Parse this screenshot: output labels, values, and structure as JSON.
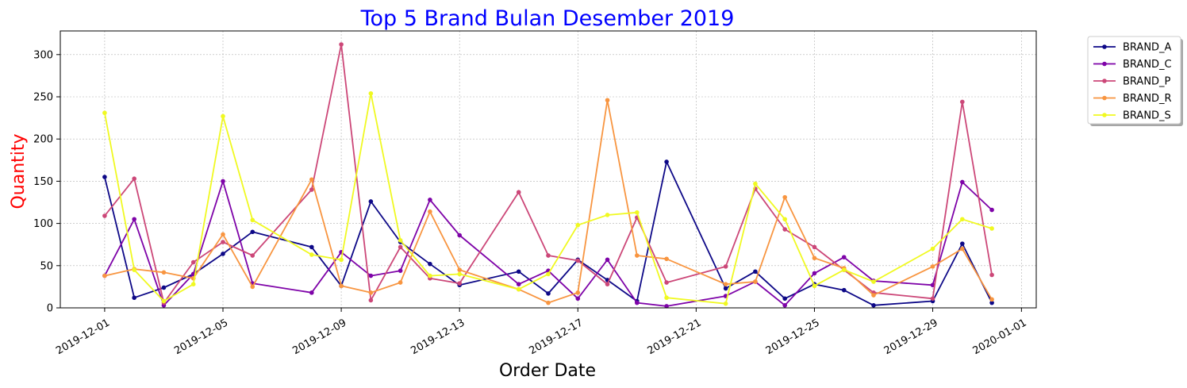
{
  "chart_data": {
    "type": "line",
    "title": "Top 5 Brand Bulan Desember 2019",
    "xlabel": "Order Date",
    "ylabel": "Quantity",
    "title_color": "#0000ff",
    "ylabel_color": "#ff0000",
    "xlim": [
      "2019-11-29T12:00",
      "2020-01-01T12:00"
    ],
    "ylim": [
      0,
      328
    ],
    "x_ticks": [
      "2019-12-01",
      "2019-12-05",
      "2019-12-09",
      "2019-12-13",
      "2019-12-17",
      "2019-12-21",
      "2019-12-25",
      "2019-12-29",
      "2020-01-01"
    ],
    "y_ticks": [
      0,
      50,
      100,
      150,
      200,
      250,
      300
    ],
    "grid": true,
    "legend_position": "outside-top-right",
    "series": [
      {
        "name": "BRAND_A",
        "color": "#0d0887",
        "points": [
          [
            "2019-12-01",
            155
          ],
          [
            "2019-12-02",
            12
          ],
          [
            "2019-12-03",
            24
          ],
          [
            "2019-12-04",
            40
          ],
          [
            "2019-12-05",
            64
          ],
          [
            "2019-12-06",
            90
          ],
          [
            "2019-12-08",
            72
          ],
          [
            "2019-12-09",
            26
          ],
          [
            "2019-12-10",
            126
          ],
          [
            "2019-12-11",
            78
          ],
          [
            "2019-12-12",
            52
          ],
          [
            "2019-12-13",
            27
          ],
          [
            "2019-12-15",
            43
          ],
          [
            "2019-12-16",
            17
          ],
          [
            "2019-12-17",
            57
          ],
          [
            "2019-12-18",
            33
          ],
          [
            "2019-12-19",
            8
          ],
          [
            "2019-12-20",
            173
          ],
          [
            "2019-12-22",
            23
          ],
          [
            "2019-12-23",
            43
          ],
          [
            "2019-12-24",
            11
          ],
          [
            "2019-12-25",
            28
          ],
          [
            "2019-12-26",
            21
          ],
          [
            "2019-12-27",
            3
          ],
          [
            "2019-12-29",
            8
          ],
          [
            "2019-12-30",
            76
          ],
          [
            "2019-12-31",
            6
          ]
        ]
      },
      {
        "name": "BRAND_C",
        "color": "#7e03a8",
        "points": [
          [
            "2019-12-01",
            38
          ],
          [
            "2019-12-02",
            105
          ],
          [
            "2019-12-03",
            3
          ],
          [
            "2019-12-04",
            40
          ],
          [
            "2019-12-05",
            150
          ],
          [
            "2019-12-06",
            29
          ],
          [
            "2019-12-08",
            18
          ],
          [
            "2019-12-09",
            66
          ],
          [
            "2019-12-10",
            38
          ],
          [
            "2019-12-11",
            44
          ],
          [
            "2019-12-12",
            128
          ],
          [
            "2019-12-13",
            86
          ],
          [
            "2019-12-15",
            28
          ],
          [
            "2019-12-16",
            44
          ],
          [
            "2019-12-17",
            11
          ],
          [
            "2019-12-18",
            57
          ],
          [
            "2019-12-19",
            6
          ],
          [
            "2019-12-20",
            2
          ],
          [
            "2019-12-22",
            14
          ],
          [
            "2019-12-23",
            31
          ],
          [
            "2019-12-24",
            3
          ],
          [
            "2019-12-25",
            41
          ],
          [
            "2019-12-26",
            60
          ],
          [
            "2019-12-27",
            32
          ],
          [
            "2019-12-29",
            27
          ],
          [
            "2019-12-30",
            149
          ],
          [
            "2019-12-31",
            116
          ]
        ]
      },
      {
        "name": "BRAND_P",
        "color": "#cc4778",
        "points": [
          [
            "2019-12-01",
            109
          ],
          [
            "2019-12-02",
            153
          ],
          [
            "2019-12-03",
            6
          ],
          [
            "2019-12-04",
            54
          ],
          [
            "2019-12-05",
            78
          ],
          [
            "2019-12-06",
            62
          ],
          [
            "2019-12-08",
            140
          ],
          [
            "2019-12-09",
            312
          ],
          [
            "2019-12-10",
            9
          ],
          [
            "2019-12-11",
            72
          ],
          [
            "2019-12-12",
            35
          ],
          [
            "2019-12-13",
            29
          ],
          [
            "2019-12-15",
            137
          ],
          [
            "2019-12-16",
            62
          ],
          [
            "2019-12-17",
            56
          ],
          [
            "2019-12-18",
            28
          ],
          [
            "2019-12-19",
            107
          ],
          [
            "2019-12-20",
            30
          ],
          [
            "2019-12-22",
            49
          ],
          [
            "2019-12-23",
            141
          ],
          [
            "2019-12-24",
            93
          ],
          [
            "2019-12-25",
            72
          ],
          [
            "2019-12-26",
            45
          ],
          [
            "2019-12-27",
            18
          ],
          [
            "2019-12-29",
            11
          ],
          [
            "2019-12-30",
            244
          ],
          [
            "2019-12-31",
            39
          ]
        ]
      },
      {
        "name": "BRAND_R",
        "color": "#f89540",
        "points": [
          [
            "2019-12-01",
            38
          ],
          [
            "2019-12-02",
            46
          ],
          [
            "2019-12-03",
            42
          ],
          [
            "2019-12-04",
            35
          ],
          [
            "2019-12-05",
            87
          ],
          [
            "2019-12-06",
            25
          ],
          [
            "2019-12-08",
            152
          ],
          [
            "2019-12-09",
            26
          ],
          [
            "2019-12-10",
            18
          ],
          [
            "2019-12-11",
            30
          ],
          [
            "2019-12-12",
            114
          ],
          [
            "2019-12-13",
            45
          ],
          [
            "2019-12-15",
            22
          ],
          [
            "2019-12-16",
            6
          ],
          [
            "2019-12-17",
            18
          ],
          [
            "2019-12-18",
            246
          ],
          [
            "2019-12-19",
            62
          ],
          [
            "2019-12-20",
            58
          ],
          [
            "2019-12-22",
            28
          ],
          [
            "2019-12-23",
            31
          ],
          [
            "2019-12-24",
            131
          ],
          [
            "2019-12-25",
            59
          ],
          [
            "2019-12-26",
            47
          ],
          [
            "2019-12-27",
            15
          ],
          [
            "2019-12-29",
            49
          ],
          [
            "2019-12-30",
            70
          ],
          [
            "2019-12-31",
            10
          ]
        ]
      },
      {
        "name": "BRAND_S",
        "color": "#f0f921",
        "points": [
          [
            "2019-12-01",
            231
          ],
          [
            "2019-12-02",
            45
          ],
          [
            "2019-12-03",
            8
          ],
          [
            "2019-12-04",
            28
          ],
          [
            "2019-12-05",
            227
          ],
          [
            "2019-12-06",
            104
          ],
          [
            "2019-12-08",
            63
          ],
          [
            "2019-12-09",
            57
          ],
          [
            "2019-12-10",
            254
          ],
          [
            "2019-12-11",
            80
          ],
          [
            "2019-12-12",
            38
          ],
          [
            "2019-12-13",
            40
          ],
          [
            "2019-12-15",
            22
          ],
          [
            "2019-12-16",
            40
          ],
          [
            "2019-12-17",
            98
          ],
          [
            "2019-12-18",
            110
          ],
          [
            "2019-12-19",
            113
          ],
          [
            "2019-12-20",
            12
          ],
          [
            "2019-12-22",
            5
          ],
          [
            "2019-12-23",
            147
          ],
          [
            "2019-12-24",
            105
          ],
          [
            "2019-12-25",
            26
          ],
          [
            "2019-12-26",
            45
          ],
          [
            "2019-12-27",
            31
          ],
          [
            "2019-12-29",
            70
          ],
          [
            "2019-12-30",
            105
          ],
          [
            "2019-12-31",
            94
          ]
        ]
      }
    ]
  }
}
